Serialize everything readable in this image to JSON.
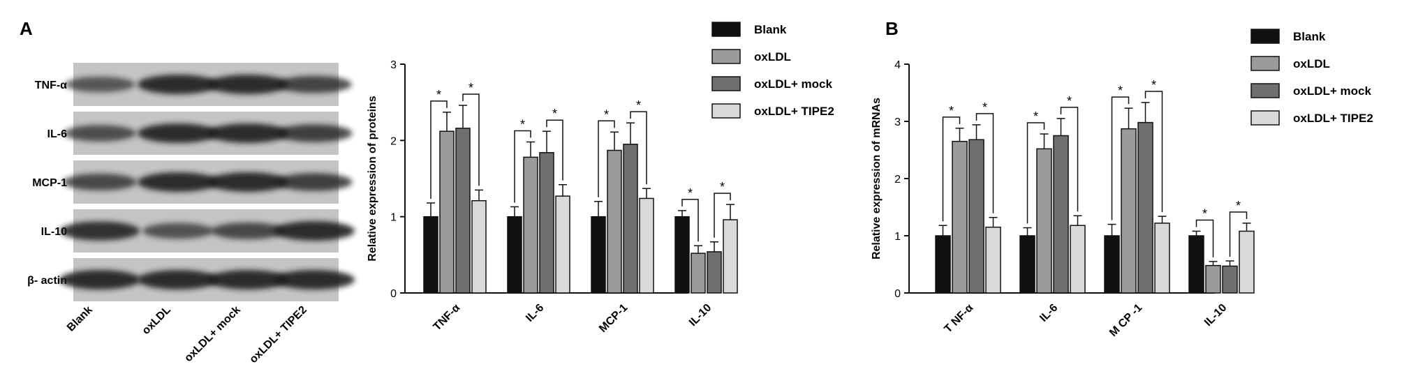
{
  "panels": {
    "a": "A",
    "b": "B"
  },
  "blot": {
    "rows": [
      "TNF-α",
      "IL-6",
      "MCP-1",
      "IL-10",
      "β- actin"
    ],
    "lanes": [
      "Blank",
      "oxLDL",
      "oxLDL+ mock",
      "oxLDL+ TIPE2"
    ]
  },
  "legend_entries": [
    "Blank",
    "oxLDL",
    "oxLDL+ mock",
    "oxLDL+ TIPE2"
  ],
  "colors": {
    "Blank": "#111111",
    "oxLDL": "#9b9b9b",
    "oxLDL+ mock": "#6f6f6f",
    "oxLDL+ TIPE2": "#d9d9d9"
  },
  "significance_marker": "*",
  "chart_data": [
    {
      "type": "bar",
      "title": "",
      "xlabel": "",
      "ylabel": "Relative expression of proteins",
      "ylim": [
        0,
        3
      ],
      "yticks": [
        0,
        1,
        2,
        3
      ],
      "categories": [
        "TNF-α",
        "IL-6",
        "MCP-1",
        "IL-10"
      ],
      "series": [
        {
          "name": "Blank",
          "values": [
            1.0,
            1.0,
            1.0,
            1.0
          ],
          "errors": [
            0.18,
            0.13,
            0.2,
            0.08
          ]
        },
        {
          "name": "oxLDL",
          "values": [
            2.12,
            1.78,
            1.87,
            0.52
          ],
          "errors": [
            0.25,
            0.2,
            0.24,
            0.1
          ]
        },
        {
          "name": "oxLDL+ mock",
          "values": [
            2.16,
            1.84,
            1.95,
            0.54
          ],
          "errors": [
            0.3,
            0.28,
            0.28,
            0.13
          ]
        },
        {
          "name": "oxLDL+ TIPE2",
          "values": [
            1.21,
            1.27,
            1.24,
            0.96
          ],
          "errors": [
            0.14,
            0.15,
            0.13,
            0.2
          ]
        }
      ],
      "legend": "top-right",
      "grid": false
    },
    {
      "type": "bar",
      "title": "",
      "xlabel": "",
      "ylabel": "Relative expression of mRNAs",
      "ylim": [
        0,
        4
      ],
      "yticks": [
        0,
        1,
        2,
        3,
        4
      ],
      "categories": [
        "T NF-α",
        "IL-6",
        "M CP -1",
        "IL-10"
      ],
      "series": [
        {
          "name": "Blank",
          "values": [
            1.0,
            1.0,
            1.0,
            1.0
          ],
          "errors": [
            0.18,
            0.14,
            0.2,
            0.08
          ]
        },
        {
          "name": "oxLDL",
          "values": [
            2.65,
            2.52,
            2.87,
            0.48
          ],
          "errors": [
            0.23,
            0.26,
            0.36,
            0.07
          ]
        },
        {
          "name": "oxLDL+ mock",
          "values": [
            2.68,
            2.75,
            2.98,
            0.47
          ],
          "errors": [
            0.26,
            0.3,
            0.35,
            0.09
          ]
        },
        {
          "name": "oxLDL+ TIPE2",
          "values": [
            1.15,
            1.18,
            1.22,
            1.08
          ],
          "errors": [
            0.17,
            0.17,
            0.12,
            0.14
          ]
        }
      ],
      "legend": "top-right",
      "grid": false
    }
  ]
}
